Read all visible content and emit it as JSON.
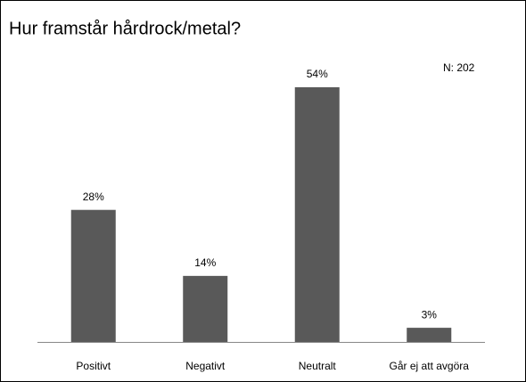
{
  "chart_data": {
    "type": "bar",
    "title": "Hur framstår hårdrock/metal?",
    "annotation": "N: 202",
    "categories": [
      "Positivt",
      "Negativt",
      "Neutralt",
      "Går ej att avgöra"
    ],
    "values": [
      28,
      14,
      54,
      3
    ],
    "value_labels": [
      "28%",
      "14%",
      "54%",
      "3%"
    ],
    "color": "#595959"
  }
}
